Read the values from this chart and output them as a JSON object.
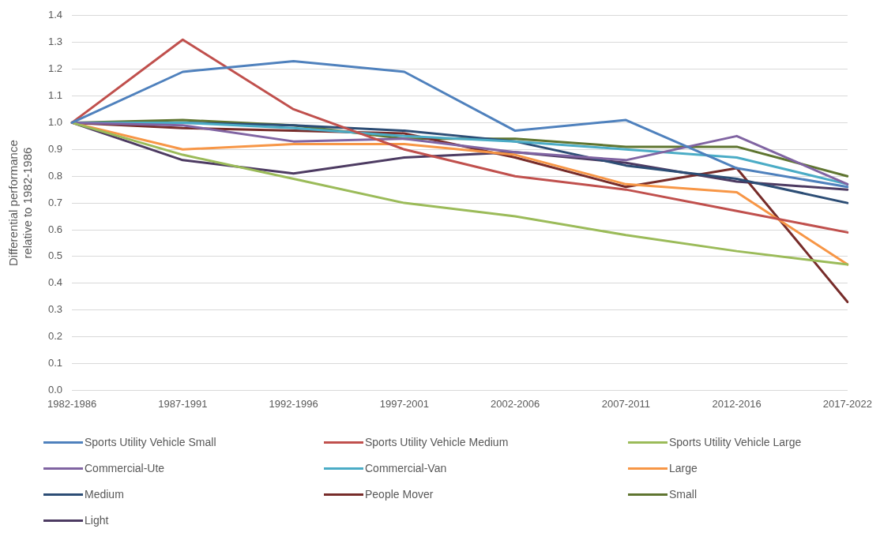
{
  "chart_data": {
    "type": "line",
    "ylabel": "Differential performance relative to 1982-1986",
    "categories": [
      "1982-1986",
      "1987-1991",
      "1992-1996",
      "1997-2001",
      "2002-2006",
      "2007-2011",
      "2012-2016",
      "2017-2022"
    ],
    "ylim": [
      0,
      1.4
    ],
    "yticks": [
      {
        "value": 0,
        "label": "0.0"
      },
      0.1,
      0.2,
      0.3,
      0.4,
      0.5,
      0.6,
      0.7,
      0.8,
      0.9,
      {
        "value": 1,
        "label": "1.0"
      },
      1.1,
      1.2,
      1.3,
      1.4
    ],
    "grid": "y",
    "legend": "bottom",
    "marker": "none",
    "series": [
      {
        "name": "Sports Utility Vehicle Small",
        "color": "#4f81bd",
        "values": [
          1.0,
          1.19,
          1.23,
          1.19,
          0.97,
          1.01,
          0.83,
          0.76
        ]
      },
      {
        "name": "Sports Utility Vehicle Medium",
        "color": "#c0504d",
        "values": [
          1.0,
          1.31,
          1.05,
          0.9,
          0.8,
          0.75,
          0.67,
          0.59
        ]
      },
      {
        "name": "Sports Utility Vehicle Large",
        "color": "#9bbb59",
        "values": [
          1.0,
          0.88,
          0.79,
          0.7,
          0.65,
          0.58,
          0.52,
          0.47
        ]
      },
      {
        "name": "Commercial-Ute",
        "color": "#8064a2",
        "values": [
          1.0,
          0.99,
          0.93,
          0.94,
          0.89,
          0.86,
          0.95,
          0.77
        ]
      },
      {
        "name": "Commercial-Van",
        "color": "#4bacc6",
        "values": [
          1.0,
          1.0,
          0.98,
          0.95,
          0.93,
          0.9,
          0.87,
          0.77
        ]
      },
      {
        "name": "Large",
        "color": "#f79646",
        "values": [
          1.0,
          0.9,
          0.92,
          0.92,
          0.88,
          0.77,
          0.74,
          0.47
        ]
      },
      {
        "name": "Medium",
        "color": "#2c4d75",
        "values": [
          1.0,
          1.0,
          0.99,
          0.97,
          0.93,
          0.84,
          0.79,
          0.7
        ]
      },
      {
        "name": "People Mover",
        "color": "#772c2a",
        "values": [
          1.0,
          0.98,
          0.97,
          0.96,
          0.87,
          0.76,
          0.83,
          0.33
        ]
      },
      {
        "name": "Small",
        "color": "#5f7530",
        "values": [
          1.0,
          1.01,
          0.99,
          0.94,
          0.94,
          0.91,
          0.91,
          0.8
        ]
      },
      {
        "name": "Light",
        "color": "#4d3b62",
        "values": [
          1.0,
          0.86,
          0.81,
          0.87,
          0.89,
          0.85,
          0.78,
          0.75
        ]
      }
    ]
  }
}
